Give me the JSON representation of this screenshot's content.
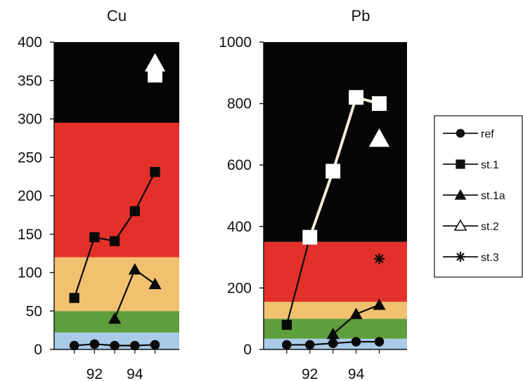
{
  "chart_data": [
    {
      "type": "line",
      "title": "Cu",
      "xlabel": "",
      "ylabel": "",
      "ylim": [
        0,
        400
      ],
      "yticks": [
        0,
        50,
        100,
        150,
        200,
        250,
        300,
        350,
        400
      ],
      "xlim": [
        90,
        96.2
      ],
      "xticks": [
        92,
        94
      ],
      "grid": false,
      "bands": [
        {
          "from": 0,
          "to": 22,
          "color": "#a9cbe8"
        },
        {
          "from": 22,
          "to": 50,
          "color": "#5f9e3c"
        },
        {
          "from": 50,
          "to": 120,
          "color": "#f2c170"
        },
        {
          "from": 120,
          "to": 295,
          "color": "#e4302a"
        },
        {
          "from": 295,
          "to": 400,
          "color": "#050505"
        }
      ],
      "series": [
        {
          "name": "ref",
          "marker": "circle",
          "line_color": "#0a0a0a",
          "marker_color": "#0a0a0a",
          "x": [
            91,
            92,
            93,
            94,
            95
          ],
          "y": [
            5,
            7,
            5,
            5,
            6
          ]
        },
        {
          "name": "st.1",
          "marker": "square",
          "line_color": "#0a0a0a",
          "marker_color": "#0a0a0a",
          "x": [
            91,
            92,
            93,
            94,
            95
          ],
          "y": [
            67,
            146,
            141,
            180,
            231
          ]
        },
        {
          "name": "st.1a",
          "marker": "triangle",
          "line_color": "#0a0a0a",
          "marker_color": "#0a0a0a",
          "x": [
            93,
            94,
            95
          ],
          "y": [
            40,
            104,
            85
          ]
        },
        {
          "name": "st.2",
          "marker": "triangle-open",
          "line_color": "#ffffff",
          "marker_color": "#ffffff",
          "x": [
            95
          ],
          "y": [
            372
          ]
        },
        {
          "name": "st.1",
          "marker": "square",
          "line_color": "#ffffff",
          "marker_color": "#ffffff",
          "x": [
            95
          ],
          "y": [
            357
          ],
          "in_legend": false
        }
      ]
    },
    {
      "type": "line",
      "title": "Pb",
      "xlabel": "",
      "ylabel": "",
      "ylim": [
        0,
        1000
      ],
      "yticks": [
        0,
        200,
        400,
        600,
        800,
        1000
      ],
      "xlim": [
        90,
        96.2
      ],
      "xticks": [
        92,
        94
      ],
      "grid": false,
      "bands": [
        {
          "from": 0,
          "to": 35,
          "color": "#a9cbe8"
        },
        {
          "from": 35,
          "to": 100,
          "color": "#5f9e3c"
        },
        {
          "from": 100,
          "to": 155,
          "color": "#f2c170"
        },
        {
          "from": 155,
          "to": 350,
          "color": "#e4302a"
        },
        {
          "from": 350,
          "to": 1000,
          "color": "#050505"
        }
      ],
      "series": [
        {
          "name": "ref",
          "marker": "circle",
          "line_color": "#0a0a0a",
          "marker_color": "#0a0a0a",
          "x": [
            91,
            92,
            93,
            94,
            95
          ],
          "y": [
            15,
            15,
            20,
            25,
            25
          ]
        },
        {
          "name": "st.1",
          "marker": "square",
          "line_color": "#0a0a0a",
          "marker_color": "#0a0a0a",
          "x": [
            91,
            92
          ],
          "y": [
            80,
            365
          ]
        },
        {
          "name": "st.1a",
          "marker": "triangle",
          "line_color": "#0a0a0a",
          "marker_color": "#0a0a0a",
          "x": [
            93,
            94,
            95
          ],
          "y": [
            50,
            115,
            145
          ]
        },
        {
          "name": "st.1",
          "marker": "square",
          "line_color": "#f2ecd8",
          "marker_color": "#ffffff",
          "x": [
            92,
            93,
            94,
            95
          ],
          "y": [
            365,
            580,
            820,
            800
          ],
          "in_legend": false
        },
        {
          "name": "st.2",
          "marker": "triangle-open",
          "line_color": "#ffffff",
          "marker_color": "#ffffff",
          "x": [
            95
          ],
          "y": [
            685
          ]
        },
        {
          "name": "st.3",
          "marker": "star",
          "line_color": "#0a0a0a",
          "marker_color": "#0a0a0a",
          "x": [
            95
          ],
          "y": [
            295
          ]
        }
      ]
    }
  ],
  "legend": {
    "placement": "right",
    "entries": [
      {
        "label": "ref",
        "marker": "circle"
      },
      {
        "label": "st.1",
        "marker": "square"
      },
      {
        "label": "st.1a",
        "marker": "triangle"
      },
      {
        "label": "st.2",
        "marker": "triangle-open"
      },
      {
        "label": "st.3",
        "marker": "star"
      }
    ]
  },
  "colors": {
    "axis": "#111111",
    "legend_border": "#111111"
  }
}
